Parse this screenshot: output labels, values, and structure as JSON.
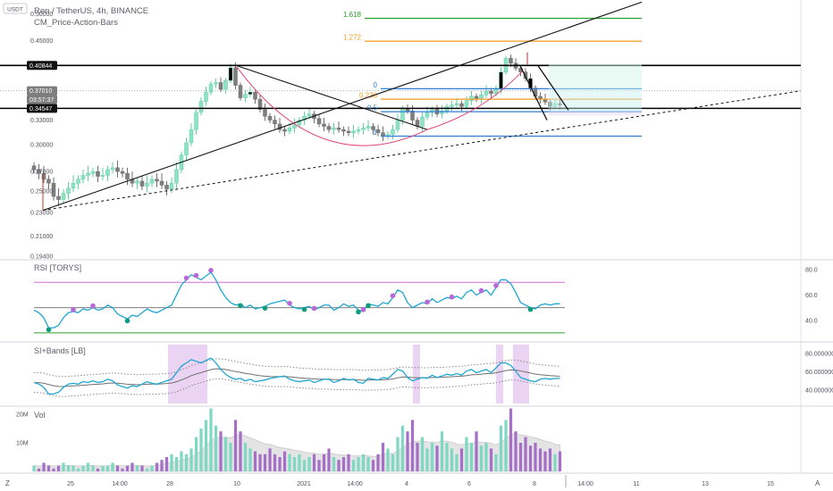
{
  "header": {
    "currency_badge": "USDT",
    "title": "Ren / TetherUS, 4h, BINANCE",
    "indicator": "CM_Price-Action-Bars"
  },
  "price_axis": {
    "ticks": [
      "0.50000",
      "0.45000",
      "0.40844",
      "0.37010",
      "03:57:37",
      "0.34547",
      "0.33000",
      "0.30000",
      "0.27000",
      "0.25000",
      "0.23000",
      "0.21000",
      "0.19400"
    ],
    "highlight": [
      "0.40844",
      "0.37010",
      "03:57:37",
      "0.34547"
    ]
  },
  "fib_levels": [
    {
      "label": "1.618",
      "color": "#2ca02c"
    },
    {
      "label": "1.272",
      "color": "#f59b1c"
    },
    {
      "label": "0",
      "color": "#2f7fd6"
    },
    {
      "label": "0.236",
      "color": "#f59b1c"
    },
    {
      "label": "0.5",
      "color": "#2f7fd6"
    },
    {
      "label": "1",
      "color": "#2f7fd6"
    }
  ],
  "panes": {
    "rsi": {
      "title": "RSI [TORYS]",
      "ticks": [
        "80.0",
        "60.0",
        "40.0"
      ]
    },
    "si_bands": {
      "title": "SI+Bands [LB]",
      "ticks": [
        "80.000000",
        "60.000000",
        "40.000000"
      ]
    },
    "vol": {
      "title": "Vol",
      "ticks": [
        "20M",
        "10M"
      ]
    }
  },
  "time_axis": {
    "ticks": [
      "25",
      "14:00",
      "28",
      "10",
      "2021",
      "14:00",
      "4",
      "6",
      "8",
      "14:00",
      "11",
      "13",
      "15"
    ],
    "left_icon": "Z",
    "right_icon": "A"
  },
  "colors": {
    "bull": "#8fe3c3",
    "bear": "#7e7e7e",
    "rsi": "#1fa6d1",
    "accent_purple": "#b968d8",
    "dot_green": "#0f9d7e",
    "rsi_upper": "#d66bd6",
    "rsi_lower": "#2ca02c",
    "vol_up": "#7fd8c4",
    "vol_down": "#a56fc7"
  },
  "chart_data": {
    "type": "candlestick",
    "title": "Ren / TetherUS, 4h, BINANCE",
    "y_range": [
      0.194,
      0.52
    ],
    "price_lines": [
      0.40844,
      0.3701,
      0.34547
    ],
    "fibonacci": [
      {
        "ratio": 1.618,
        "price": 0.491
      },
      {
        "ratio": 1.272,
        "price": 0.449
      },
      {
        "ratio": 0,
        "price": 0.373
      },
      {
        "ratio": 0.236,
        "price": 0.358
      },
      {
        "ratio": 0.5,
        "price": 0.341
      },
      {
        "ratio": 1,
        "price": 0.31
      }
    ],
    "close": [
      0.272,
      0.268,
      0.262,
      0.258,
      0.245,
      0.242,
      0.248,
      0.253,
      0.258,
      0.262,
      0.266,
      0.268,
      0.27,
      0.265,
      0.266,
      0.272,
      0.274,
      0.27,
      0.268,
      0.262,
      0.258,
      0.26,
      0.255,
      0.258,
      0.262,
      0.26,
      0.256,
      0.252,
      0.258,
      0.272,
      0.288,
      0.302,
      0.318,
      0.34,
      0.355,
      0.368,
      0.38,
      0.382,
      0.372,
      0.385,
      0.405,
      0.378,
      0.36,
      0.365,
      0.368,
      0.358,
      0.344,
      0.335,
      0.33,
      0.325,
      0.318,
      0.316,
      0.32,
      0.324,
      0.33,
      0.335,
      0.338,
      0.332,
      0.325,
      0.322,
      0.318,
      0.32,
      0.318,
      0.316,
      0.314,
      0.316,
      0.318,
      0.32,
      0.322,
      0.318,
      0.314,
      0.31,
      0.312,
      0.318,
      0.33,
      0.345,
      0.342,
      0.33,
      0.322,
      0.334,
      0.34,
      0.344,
      0.338,
      0.342,
      0.348,
      0.35,
      0.352,
      0.348,
      0.356,
      0.362,
      0.358,
      0.364,
      0.37,
      0.366,
      0.372,
      0.398,
      0.42,
      0.412,
      0.404,
      0.398,
      0.388,
      0.374,
      0.362,
      0.358,
      0.354,
      0.348,
      0.352,
      0.35
    ],
    "rsi": [
      48,
      46,
      42,
      34,
      34,
      36,
      42,
      46,
      47,
      46,
      49,
      48,
      50,
      48,
      49,
      52,
      50,
      45,
      43,
      41,
      44,
      43,
      46,
      49,
      47,
      46,
      48,
      50,
      52,
      60,
      68,
      72,
      76,
      74,
      72,
      75,
      78,
      72,
      64,
      58,
      54,
      52,
      53,
      50,
      52,
      49,
      50,
      51,
      53,
      54,
      55,
      56,
      52,
      50,
      49,
      50,
      51,
      48,
      50,
      52,
      52,
      48,
      50,
      53,
      51,
      52,
      48,
      47,
      53,
      52,
      51,
      54,
      53,
      58,
      64,
      62,
      54,
      50,
      52,
      54,
      53,
      57,
      54,
      56,
      58,
      57,
      59,
      57,
      62,
      64,
      60,
      62,
      64,
      60,
      66,
      72,
      72,
      69,
      62,
      54,
      52,
      50,
      49,
      52,
      53,
      52,
      53,
      53
    ],
    "volume": [
      2,
      1,
      3,
      2,
      1,
      2,
      3,
      2,
      2,
      1,
      2,
      3,
      2,
      1,
      2,
      2,
      3,
      2,
      1,
      2,
      3,
      2,
      2,
      1,
      2,
      3,
      4,
      5,
      6,
      5,
      7,
      6,
      8,
      12,
      15,
      18,
      22,
      16,
      14,
      12,
      10,
      18,
      14,
      10,
      8,
      7,
      6,
      6,
      8,
      6,
      5,
      7,
      6,
      5,
      6,
      4,
      5,
      6,
      4,
      6,
      8,
      5,
      4,
      5,
      6,
      4,
      5,
      6,
      5,
      4,
      6,
      10,
      8,
      6,
      12,
      16,
      14,
      18,
      10,
      12,
      8,
      10,
      9,
      14,
      10,
      8,
      6,
      8,
      12,
      10,
      14,
      9,
      10,
      8,
      6,
      16,
      18,
      22,
      14,
      10,
      12,
      9,
      10,
      8,
      7,
      8,
      6,
      7
    ]
  }
}
